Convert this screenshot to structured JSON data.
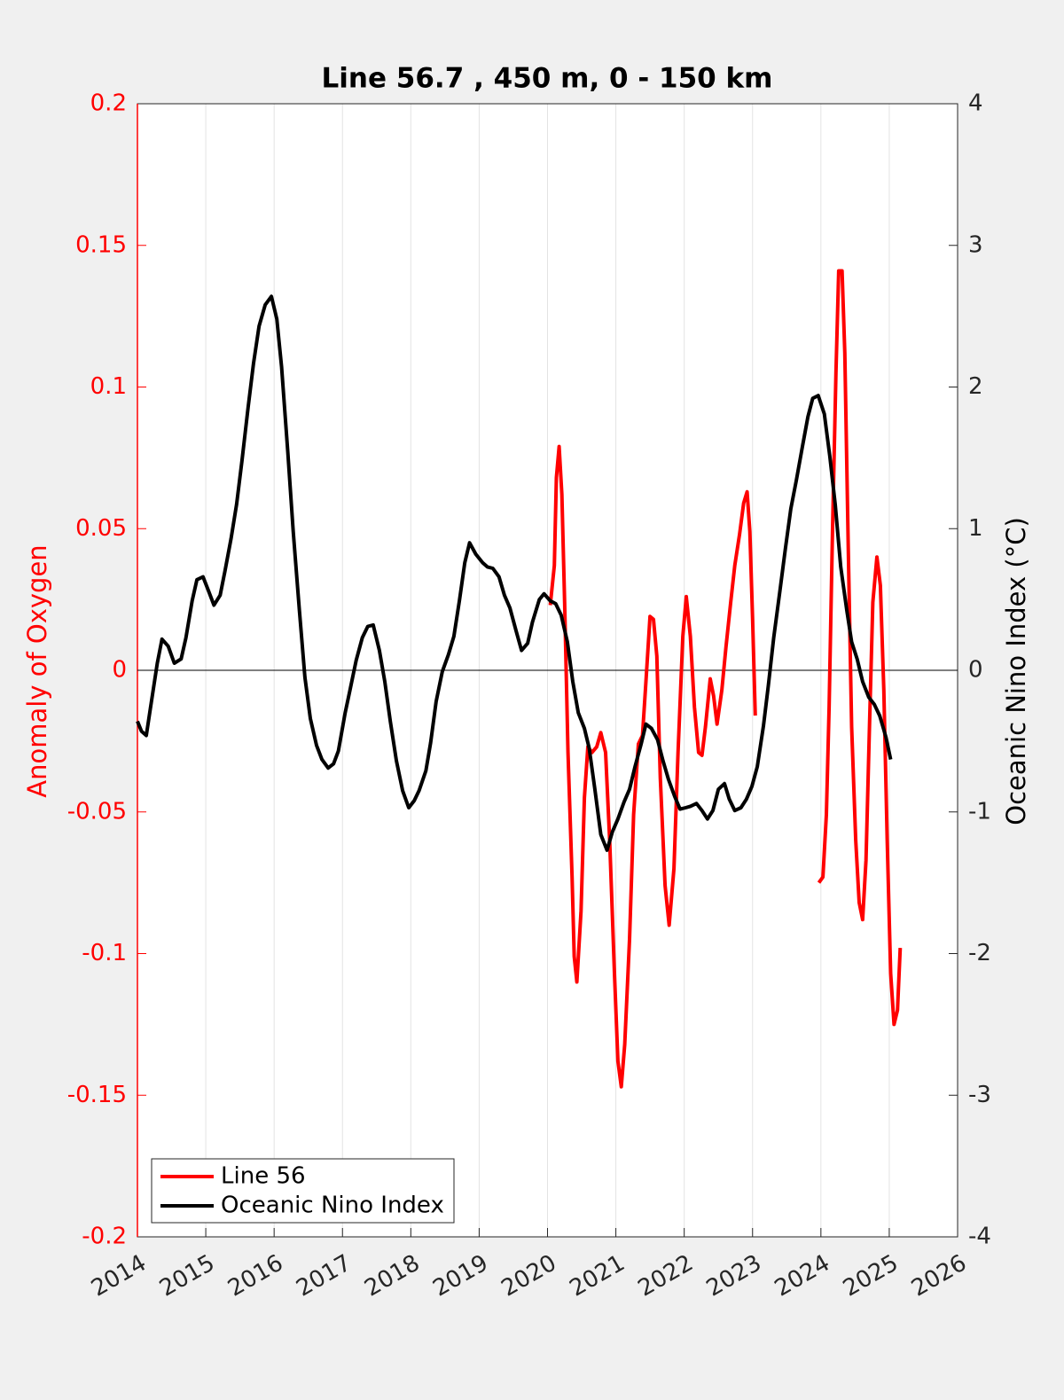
{
  "chart_data": {
    "type": "line",
    "title": "Line 56.7 , 450 m, 0 - 150 km",
    "ylabel": "Anomaly of Oxygen",
    "y2label": "Oceanic Nino Index (°C)",
    "xlim": [
      2014,
      2026
    ],
    "xticks": [
      2014,
      2015,
      2016,
      2017,
      2018,
      2019,
      2020,
      2021,
      2022,
      2023,
      2024,
      2025,
      2026
    ],
    "ylim": [
      -0.2,
      0.2
    ],
    "yticks": [
      -0.2,
      -0.15,
      -0.1,
      -0.05,
      0,
      0.05,
      0.1,
      0.15,
      0.2
    ],
    "y2lim": [
      -4,
      4
    ],
    "y2ticks": [
      -4,
      -3,
      -2,
      -1,
      0,
      1,
      2,
      3,
      4
    ],
    "ycolor": "#ff0000",
    "xgrid": true,
    "zero_line": true,
    "legend": "lower left",
    "series": [
      {
        "name": "Line 56",
        "color": "#ff0000",
        "axis": "y",
        "x": [
          2020.04,
          2020.1,
          2020.13,
          2020.17,
          2020.21,
          2020.25,
          2020.3,
          2020.36,
          2020.39,
          2020.43,
          2020.49,
          2020.54,
          2020.59,
          2020.65,
          2020.72,
          2020.78,
          2020.85,
          2020.91,
          2020.98,
          2021.03,
          2021.08,
          2021.13,
          2021.2,
          2021.26,
          2021.33,
          2021.39,
          2021.44,
          2021.5,
          2021.55,
          2021.6,
          2021.65,
          2021.72,
          2021.78,
          2021.85,
          2021.91,
          2021.98,
          2022.03,
          2022.09,
          2022.15,
          2022.21,
          2022.26,
          2022.31,
          2022.38,
          2022.43,
          2022.48,
          2022.55,
          2022.61,
          2022.68,
          2022.74,
          2022.81,
          2022.87,
          2022.92,
          2022.96,
          2023.0,
          2023.04,
          2023.5,
          2023.97,
          2024.03,
          2024.08,
          2024.12,
          2024.17,
          2024.22,
          2024.26,
          2024.31,
          2024.35,
          2024.4,
          2024.45,
          2024.51,
          2024.56,
          2024.61,
          2024.66,
          2024.71,
          2024.76,
          2024.82,
          2024.87,
          2024.92,
          2024.97,
          2025.02,
          2025.07,
          2025.12,
          2025.16
        ],
        "values": [
          0.023,
          0.037,
          0.068,
          0.079,
          0.062,
          0.024,
          -0.029,
          -0.073,
          -0.101,
          -0.11,
          -0.085,
          -0.045,
          -0.027,
          -0.029,
          -0.027,
          -0.022,
          -0.029,
          -0.06,
          -0.107,
          -0.138,
          -0.147,
          -0.132,
          -0.095,
          -0.051,
          -0.026,
          -0.023,
          -0.004,
          0.019,
          0.018,
          0.005,
          -0.038,
          -0.076,
          -0.09,
          -0.07,
          -0.029,
          0.012,
          0.026,
          0.012,
          -0.013,
          -0.029,
          -0.03,
          -0.02,
          -0.003,
          -0.009,
          -0.019,
          -0.007,
          0.008,
          0.024,
          0.037,
          0.048,
          0.059,
          0.063,
          0.049,
          0.018,
          -0.016,
          null,
          -0.075,
          -0.073,
          -0.051,
          -0.013,
          0.049,
          0.105,
          0.141,
          0.141,
          0.112,
          0.043,
          -0.02,
          -0.06,
          -0.082,
          -0.088,
          -0.067,
          -0.02,
          0.024,
          0.04,
          0.03,
          -0.007,
          -0.06,
          -0.107,
          -0.125,
          -0.12,
          -0.098
        ]
      },
      {
        "name": "Oceanic Nino Index",
        "color": "#000000",
        "axis": "y2",
        "x": [
          2014.0,
          2014.06,
          2014.13,
          2014.19,
          2014.29,
          2014.36,
          2014.45,
          2014.54,
          2014.64,
          2014.71,
          2014.8,
          2014.87,
          2014.96,
          2015.04,
          2015.12,
          2015.21,
          2015.28,
          2015.37,
          2015.45,
          2015.53,
          2015.62,
          2015.7,
          2015.78,
          2015.87,
          2015.96,
          2016.04,
          2016.11,
          2016.2,
          2016.28,
          2016.37,
          2016.45,
          2016.53,
          2016.62,
          2016.7,
          2016.79,
          2016.87,
          2016.94,
          2017.04,
          2017.11,
          2017.2,
          2017.29,
          2017.37,
          2017.45,
          2017.54,
          2017.62,
          2017.7,
          2017.79,
          2017.88,
          2017.97,
          2018.05,
          2018.12,
          2018.22,
          2018.29,
          2018.37,
          2018.46,
          2018.55,
          2018.63,
          2018.71,
          2018.79,
          2018.86,
          2018.95,
          2019.05,
          2019.12,
          2019.2,
          2019.29,
          2019.37,
          2019.45,
          2019.54,
          2019.62,
          2019.71,
          2019.78,
          2019.88,
          2019.95,
          2020.04,
          2020.12,
          2020.2,
          2020.29,
          2020.37,
          2020.45,
          2020.54,
          2020.61,
          2020.69,
          2020.78,
          2020.87,
          2020.95,
          2021.03,
          2021.12,
          2021.2,
          2021.28,
          2021.37,
          2021.44,
          2021.52,
          2021.61,
          2021.69,
          2021.77,
          2021.86,
          2021.94,
          2022.02,
          2022.09,
          2022.18,
          2022.26,
          2022.34,
          2022.42,
          2022.5,
          2022.59,
          2022.66,
          2022.74,
          2022.83,
          2022.91,
          2022.99,
          2023.07,
          2023.16,
          2023.23,
          2023.31,
          2023.4,
          2023.48,
          2023.56,
          2023.64,
          2023.73,
          2023.81,
          2023.88,
          2023.96,
          2024.05,
          2024.13,
          2024.21,
          2024.29,
          2024.38,
          2024.45,
          2024.53,
          2024.61,
          2024.7,
          2024.78,
          2024.86,
          2024.95,
          2025.02
        ],
        "values": [
          -0.36,
          -0.43,
          -0.46,
          -0.27,
          0.05,
          0.22,
          0.17,
          0.05,
          0.08,
          0.23,
          0.49,
          0.64,
          0.66,
          0.56,
          0.46,
          0.53,
          0.7,
          0.93,
          1.17,
          1.48,
          1.86,
          2.17,
          2.43,
          2.58,
          2.64,
          2.48,
          2.14,
          1.54,
          0.98,
          0.42,
          -0.05,
          -0.34,
          -0.53,
          -0.63,
          -0.69,
          -0.66,
          -0.57,
          -0.3,
          -0.14,
          0.07,
          0.23,
          0.31,
          0.32,
          0.14,
          -0.08,
          -0.36,
          -0.64,
          -0.85,
          -0.97,
          -0.92,
          -0.85,
          -0.71,
          -0.51,
          -0.22,
          -0.01,
          0.11,
          0.24,
          0.49,
          0.76,
          0.9,
          0.82,
          0.76,
          0.73,
          0.72,
          0.66,
          0.53,
          0.44,
          0.28,
          0.14,
          0.19,
          0.34,
          0.5,
          0.54,
          0.49,
          0.47,
          0.39,
          0.2,
          -0.08,
          -0.3,
          -0.41,
          -0.55,
          -0.83,
          -1.16,
          -1.27,
          -1.14,
          -1.05,
          -0.93,
          -0.84,
          -0.68,
          -0.52,
          -0.38,
          -0.41,
          -0.49,
          -0.64,
          -0.77,
          -0.89,
          -0.98,
          -0.97,
          -0.96,
          -0.94,
          -0.99,
          -1.05,
          -0.99,
          -0.84,
          -0.8,
          -0.91,
          -0.99,
          -0.97,
          -0.91,
          -0.82,
          -0.68,
          -0.39,
          -0.11,
          0.23,
          0.56,
          0.86,
          1.14,
          1.34,
          1.58,
          1.79,
          1.92,
          1.94,
          1.81,
          1.51,
          1.17,
          0.73,
          0.42,
          0.2,
          0.08,
          -0.08,
          -0.19,
          -0.24,
          -0.32,
          -0.47,
          -0.63
        ]
      }
    ]
  }
}
